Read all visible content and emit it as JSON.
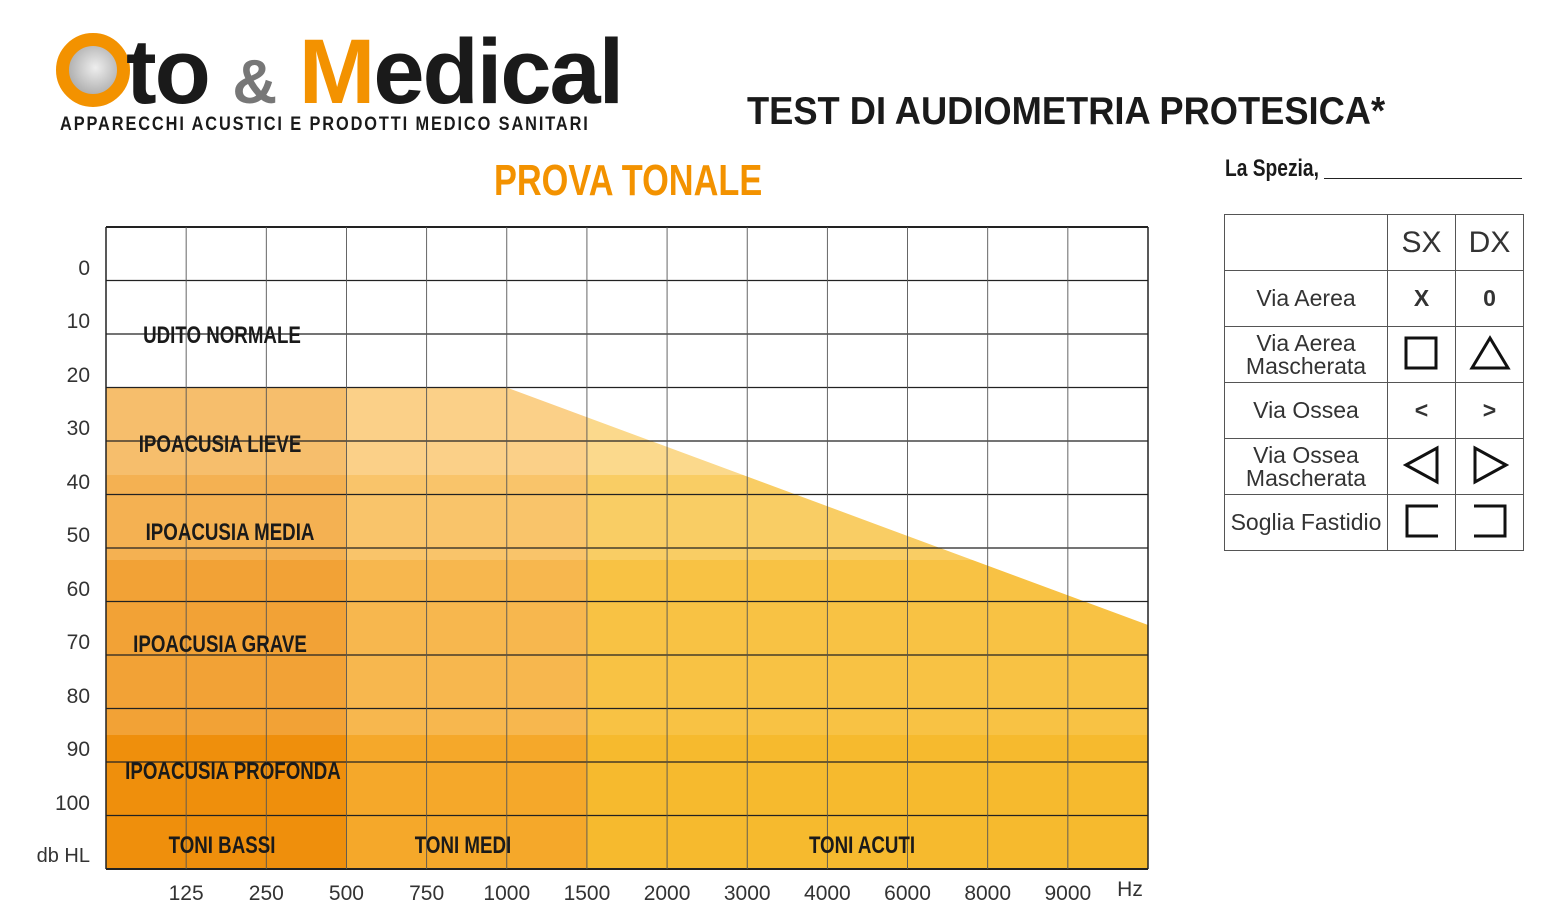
{
  "logo": {
    "prefix_letter": "O",
    "part1": "to",
    "amp": "&",
    "m": "M",
    "part2": "edical",
    "tagline": "APPARECCHI ACUSTICI E PRODOTTI MEDICO SANITARI"
  },
  "header": {
    "title": "TEST DI AUDIOMETRIA PROTESICA*",
    "subtitle": "PROVA TONALE",
    "place": "La Spezia,"
  },
  "chart": {
    "y_labels": [
      "0",
      "10",
      "20",
      "30",
      "40",
      "50",
      "60",
      "70",
      "80",
      "90",
      "100",
      "db HL"
    ],
    "x_labels": [
      "125",
      "250",
      "500",
      "750",
      "1000",
      "1500",
      "2000",
      "3000",
      "4000",
      "6000",
      "8000",
      "9000",
      "Hz"
    ],
    "bands": [
      "UDITO NORMALE",
      "IPOACUSIA LIEVE",
      "IPOACUSIA MEDIA",
      "IPOACUSIA GRAVE",
      "IPOACUSIA PROFONDA"
    ],
    "tones": [
      "TONI BASSI",
      "TONI MEDI",
      "TONI ACUTI"
    ],
    "colors": {
      "accent": "#f39200",
      "grid": "#222222"
    }
  },
  "legend": {
    "headers": [
      "SX",
      "DX"
    ],
    "rows": [
      {
        "label": "Via Aerea",
        "sx": "X",
        "dx": "0"
      },
      {
        "label": "Via Aerea Mascherata",
        "sx": "square-icon",
        "dx": "triangle-up-icon"
      },
      {
        "label": "Via Ossea",
        "sx": "<",
        "dx": ">"
      },
      {
        "label": "Via Ossea Mascherata",
        "sx": "triangle-left-icon",
        "dx": "triangle-right-icon"
      },
      {
        "label": "Soglia Fastidio",
        "sx": "bracket-left-icon",
        "dx": "bracket-right-icon"
      }
    ]
  }
}
